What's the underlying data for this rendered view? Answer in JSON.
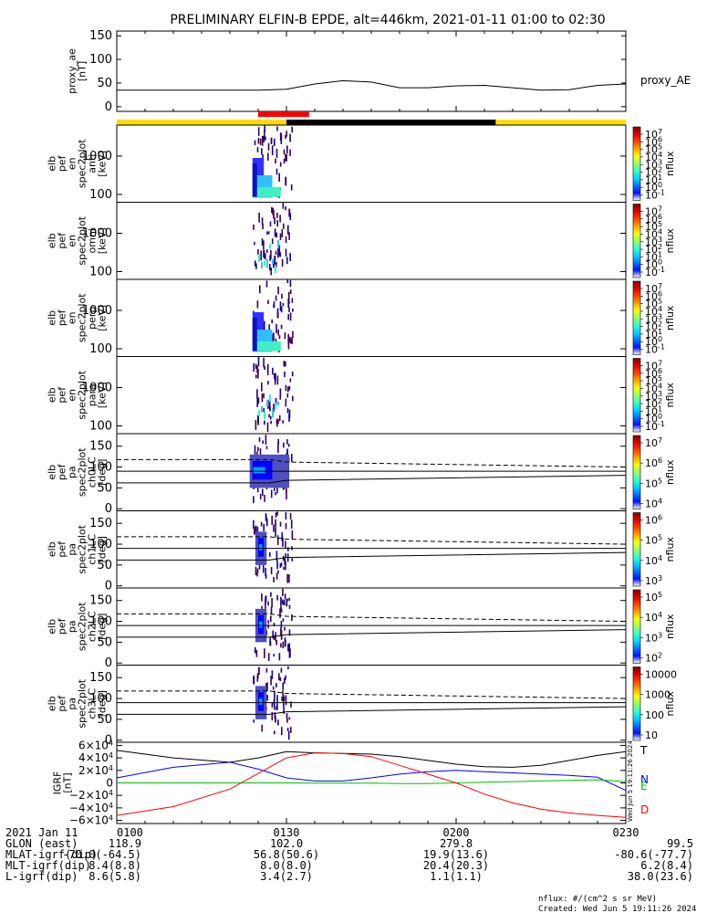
{
  "title": "PRELIMINARY ELFIN-B EPDE, alt=446km, 2021-01-11 01:00 to 02:30",
  "chart_data": [
    {
      "type": "line",
      "panel": "proxy_ae",
      "ylabel": [
        "proxy_ae",
        "[nT]"
      ],
      "yticks": [
        "150",
        "100",
        "50",
        "0"
      ],
      "ylim": [
        -10,
        160
      ],
      "legend": "proxy_AE",
      "series": [
        {
          "name": "proxy_AE",
          "x": [
            "01:00",
            "01:10",
            "01:20",
            "01:25",
            "01:30",
            "01:35",
            "01:40",
            "01:45",
            "01:50",
            "01:55",
            "02:00",
            "02:05",
            "02:10",
            "02:15",
            "02:20",
            "02:25",
            "02:30"
          ],
          "values": [
            35,
            35,
            35,
            35,
            37,
            48,
            55,
            52,
            40,
            40,
            44,
            45,
            40,
            35,
            36,
            45,
            48
          ]
        }
      ]
    },
    {
      "type": "heatmap",
      "panel": "elb_pef_en_spec2plot_anti",
      "ylabel": [
        "elb",
        "pef",
        "en",
        "spec2plot",
        "anti",
        "[keV]"
      ],
      "yticks": [
        "1000",
        "100"
      ],
      "colorbar": {
        "label": "nflux",
        "ticks": [
          "10^7",
          "10^6",
          "10^5",
          "10^4",
          "10^3",
          "10^2",
          "10^1",
          "10^0",
          "10^-1"
        ]
      }
    },
    {
      "type": "heatmap",
      "panel": "elb_pef_en_spec2plot_omni",
      "ylabel": [
        "elb",
        "pef",
        "en",
        "spec2plot",
        "omni",
        "[keV]"
      ],
      "yticks": [
        "1000",
        "100"
      ],
      "colorbar": {
        "label": "nflux",
        "ticks": [
          "10^7",
          "10^6",
          "10^5",
          "10^4",
          "10^3",
          "10^2",
          "10^1",
          "10^0",
          "10^-1"
        ]
      }
    },
    {
      "type": "heatmap",
      "panel": "elb_pef_en_spec2plot_perp",
      "ylabel": [
        "elb",
        "pef",
        "en",
        "spec2plot",
        "perp",
        "[keV]"
      ],
      "yticks": [
        "1000",
        "100"
      ],
      "colorbar": {
        "label": "nflux",
        "ticks": [
          "10^7",
          "10^6",
          "10^5",
          "10^4",
          "10^3",
          "10^2",
          "10^1",
          "10^0",
          "10^-1"
        ]
      }
    },
    {
      "type": "heatmap",
      "panel": "elb_pef_en_spec2plot_para",
      "ylabel": [
        "elb",
        "pef",
        "en",
        "spec2plot",
        "para",
        "[keV]"
      ],
      "yticks": [
        "1000",
        "100"
      ],
      "colorbar": {
        "label": "nflux",
        "ticks": [
          "10^7",
          "10^6",
          "10^5",
          "10^4",
          "10^3",
          "10^2",
          "10^1",
          "10^0",
          "10^-1"
        ]
      }
    },
    {
      "type": "heatmap",
      "panel": "elb_pef_pa_spec2plot_ch0LC",
      "ylabel": [
        "elb",
        "pef",
        "pa",
        "spec2plot",
        "ch0LC",
        "[deg]"
      ],
      "yticks": [
        "150",
        "100",
        "50",
        "0"
      ],
      "ylim": [
        -5,
        180
      ],
      "colorbar": {
        "label": "nflux",
        "ticks": [
          "10^7",
          "10^6",
          "10^5",
          "10^4"
        ]
      }
    },
    {
      "type": "heatmap",
      "panel": "elb_pef_pa_spec2plot_ch1LC",
      "ylabel": [
        "elb",
        "pef",
        "pa",
        "spec2plot",
        "ch1LC",
        "[deg]"
      ],
      "yticks": [
        "150",
        "100",
        "50",
        "0"
      ],
      "ylim": [
        -5,
        180
      ],
      "colorbar": {
        "label": "nflux",
        "ticks": [
          "10^6",
          "10^5",
          "10^4",
          "10^3"
        ]
      }
    },
    {
      "type": "heatmap",
      "panel": "elb_pef_pa_spec2plot_ch2LC",
      "ylabel": [
        "elb",
        "pef",
        "pa",
        "spec2plot",
        "ch2LC",
        "[deg]"
      ],
      "yticks": [
        "150",
        "100",
        "50",
        "0"
      ],
      "ylim": [
        -5,
        180
      ],
      "colorbar": {
        "label": "nflux",
        "ticks": [
          "10^5",
          "10^4",
          "10^3",
          "10^2"
        ]
      }
    },
    {
      "type": "heatmap",
      "panel": "elb_pef_pa_spec2plot_ch3LC",
      "ylabel": [
        "elb",
        "pef",
        "pa",
        "spec2plot",
        "ch3LC",
        "[deg]"
      ],
      "yticks": [
        "150",
        "100",
        "50",
        "0"
      ],
      "ylim": [
        -5,
        180
      ],
      "colorbar": {
        "label": "nflux",
        "ticks": [
          "10000",
          "1000",
          "100",
          "10"
        ]
      }
    },
    {
      "type": "line",
      "panel": "igrf",
      "ylabel": [
        "IGRF",
        "[nT]"
      ],
      "yticks": [
        "6×10^4",
        "4×10^4",
        "2×10^4",
        "0",
        "−2×10^4",
        "−4×10^4",
        "−6×10^4"
      ],
      "ylim": [
        -65000,
        65000
      ],
      "x": [
        "01:00",
        "01:10",
        "01:20",
        "01:25",
        "01:30",
        "01:35",
        "01:40",
        "01:45",
        "01:50",
        "01:55",
        "02:00",
        "02:05",
        "02:10",
        "02:15",
        "02:20",
        "02:25",
        "02:30"
      ],
      "series": [
        {
          "name": "T",
          "values": [
            52000,
            40000,
            33000,
            40000,
            50000,
            48000,
            47000,
            46000,
            42000,
            36000,
            30000,
            26000,
            25000,
            28000,
            36000,
            44000,
            50000
          ]
        },
        {
          "name": "N",
          "values": [
            8000,
            25000,
            33000,
            22000,
            8000,
            3000,
            3000,
            8000,
            14000,
            18000,
            20000,
            18000,
            16000,
            14000,
            12000,
            9000,
            -12000
          ]
        },
        {
          "name": "E",
          "values": [
            0,
            0,
            0,
            0,
            0,
            -500,
            -500,
            -500,
            -1000,
            -1000,
            0,
            1000,
            2000,
            3000,
            4000,
            5000,
            2000
          ]
        },
        {
          "name": "D",
          "values": [
            -52000,
            -38000,
            -10000,
            15000,
            40000,
            48000,
            47000,
            42000,
            28000,
            14000,
            0,
            -18000,
            -32000,
            -42000,
            -48000,
            -52000,
            -55000
          ]
        }
      ]
    }
  ],
  "orbit_bar": [
    {
      "from": "01:00",
      "to": "01:30",
      "color": "#ffdd00"
    },
    {
      "from": "01:30",
      "to": "02:07",
      "color": "#000000"
    },
    {
      "from": "02:07",
      "to": "02:30",
      "color": "#ffdd00"
    }
  ],
  "science_zone": {
    "from": "01:25",
    "to": "01:34",
    "color": "#ff0000"
  },
  "ephem": {
    "labels": [
      "2021 Jan 11",
      "GLON (east)",
      "MLAT-igrf(dip)",
      "MLT-igrf(dip)",
      "L-igrf(dip)"
    ],
    "ticks": [
      "0100",
      "0130",
      "0200",
      "0230"
    ],
    "rows": [
      [
        "118.9",
        "102.0",
        "279.8",
        "99.5"
      ],
      [
        "-70.0(-64.5)",
        "56.8(50.6)",
        "19.9(13.6)",
        "-80.6(-77.7)"
      ],
      [
        "8.4(8.8)",
        "8.0(8.0)",
        "20.4(20.3)",
        "6.2(8.4)"
      ],
      [
        "8.6(5.8)",
        "3.4(2.7)",
        "1.1(1.1)",
        "38.0(23.6)"
      ]
    ]
  },
  "footer": {
    "units": "nflux: #/(cm^2 s sr MeV)",
    "created": "Created: Wed Jun  5 19:11:26 2024",
    "side_stamp": "Wed Jun  5 19:11:26 2024"
  },
  "colors": {
    "T": "#000000",
    "N": "#0000ff",
    "E": "#00c000",
    "D": "#ff0000"
  }
}
